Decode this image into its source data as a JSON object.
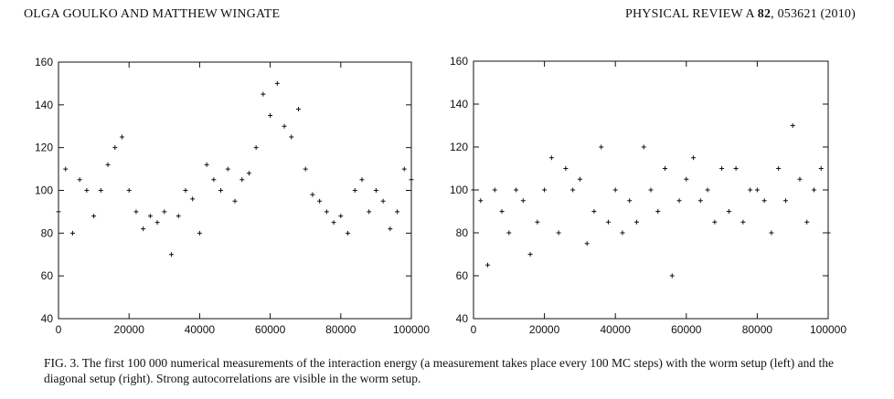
{
  "header": {
    "authors": "OLGA GOULKO AND MATTHEW WINGATE",
    "journal": "PHYSICAL REVIEW A",
    "volume": "82",
    "citation_rest": ", 053621 (2010)"
  },
  "caption": {
    "text": "FIG. 3. The first 100 000 numerical measurements of the interaction energy (a measurement takes place every 100 MC steps) with the worm setup (left) and the diagonal setup (right). Strong autocorrelations are visible in the worm setup."
  },
  "chart_data": [
    {
      "type": "scatter",
      "marker": "+",
      "color": "#111111",
      "grid": false,
      "xlim": [
        0,
        100000
      ],
      "ylim": [
        40,
        160
      ],
      "xticks": [
        0,
        20000,
        40000,
        60000,
        80000,
        100000
      ],
      "yticks": [
        40,
        60,
        80,
        100,
        120,
        140,
        160
      ],
      "x_tick_labels": [
        "0",
        "20000",
        "40000",
        "60000",
        "80000",
        "100000"
      ],
      "y_tick_labels": [
        "40",
        "60",
        "80",
        "100",
        "120",
        "140",
        "160"
      ],
      "series": [
        {
          "x": [
            0,
            2000,
            4000,
            6000,
            8000,
            10000,
            12000,
            14000,
            16000,
            18000,
            20000,
            22000,
            24000,
            26000,
            28000,
            30000,
            32000,
            34000,
            36000,
            38000,
            40000,
            42000,
            44000,
            46000,
            48000,
            50000,
            52000,
            54000,
            56000,
            58000,
            60000,
            62000,
            64000,
            66000,
            68000,
            70000,
            72000,
            74000,
            76000,
            78000,
            80000,
            82000,
            84000,
            86000,
            88000,
            90000,
            92000,
            94000,
            96000,
            98000,
            100000
          ],
          "y": [
            90,
            110,
            80,
            105,
            100,
            88,
            100,
            112,
            120,
            125,
            100,
            90,
            82,
            88,
            85,
            90,
            70,
            88,
            100,
            96,
            80,
            112,
            105,
            100,
            110,
            95,
            105,
            108,
            120,
            145,
            135,
            150,
            130,
            125,
            138,
            110,
            98,
            95,
            90,
            85,
            88,
            80,
            100,
            105,
            90,
            100,
            95,
            82,
            90,
            110,
            105
          ]
        }
      ]
    },
    {
      "type": "scatter",
      "marker": "+",
      "color": "#111111",
      "grid": false,
      "xlim": [
        0,
        100000
      ],
      "ylim": [
        40,
        160
      ],
      "xticks": [
        0,
        20000,
        40000,
        60000,
        80000,
        100000
      ],
      "yticks": [
        40,
        60,
        80,
        100,
        120,
        140,
        160
      ],
      "x_tick_labels": [
        "0",
        "20000",
        "40000",
        "60000",
        "80000",
        "100000"
      ],
      "y_tick_labels": [
        "40",
        "60",
        "80",
        "100",
        "120",
        "140",
        "160"
      ],
      "series": [
        {
          "x": [
            0,
            2000,
            4000,
            6000,
            8000,
            10000,
            12000,
            14000,
            16000,
            18000,
            20000,
            22000,
            24000,
            26000,
            28000,
            30000,
            32000,
            34000,
            36000,
            38000,
            40000,
            42000,
            44000,
            46000,
            48000,
            50000,
            52000,
            54000,
            56000,
            58000,
            60000,
            62000,
            64000,
            66000,
            68000,
            70000,
            72000,
            74000,
            76000,
            78000,
            80000,
            82000,
            84000,
            86000,
            88000,
            90000,
            92000,
            94000,
            96000,
            98000,
            100000
          ],
          "y": [
            100,
            95,
            65,
            100,
            90,
            80,
            100,
            95,
            70,
            85,
            100,
            115,
            80,
            110,
            100,
            105,
            75,
            90,
            120,
            85,
            100,
            80,
            95,
            85,
            120,
            100,
            90,
            110,
            60,
            95,
            105,
            115,
            95,
            100,
            85,
            110,
            90,
            110,
            85,
            100,
            100,
            95,
            80,
            110,
            95,
            130,
            105,
            85,
            100,
            110,
            80
          ]
        }
      ]
    }
  ]
}
